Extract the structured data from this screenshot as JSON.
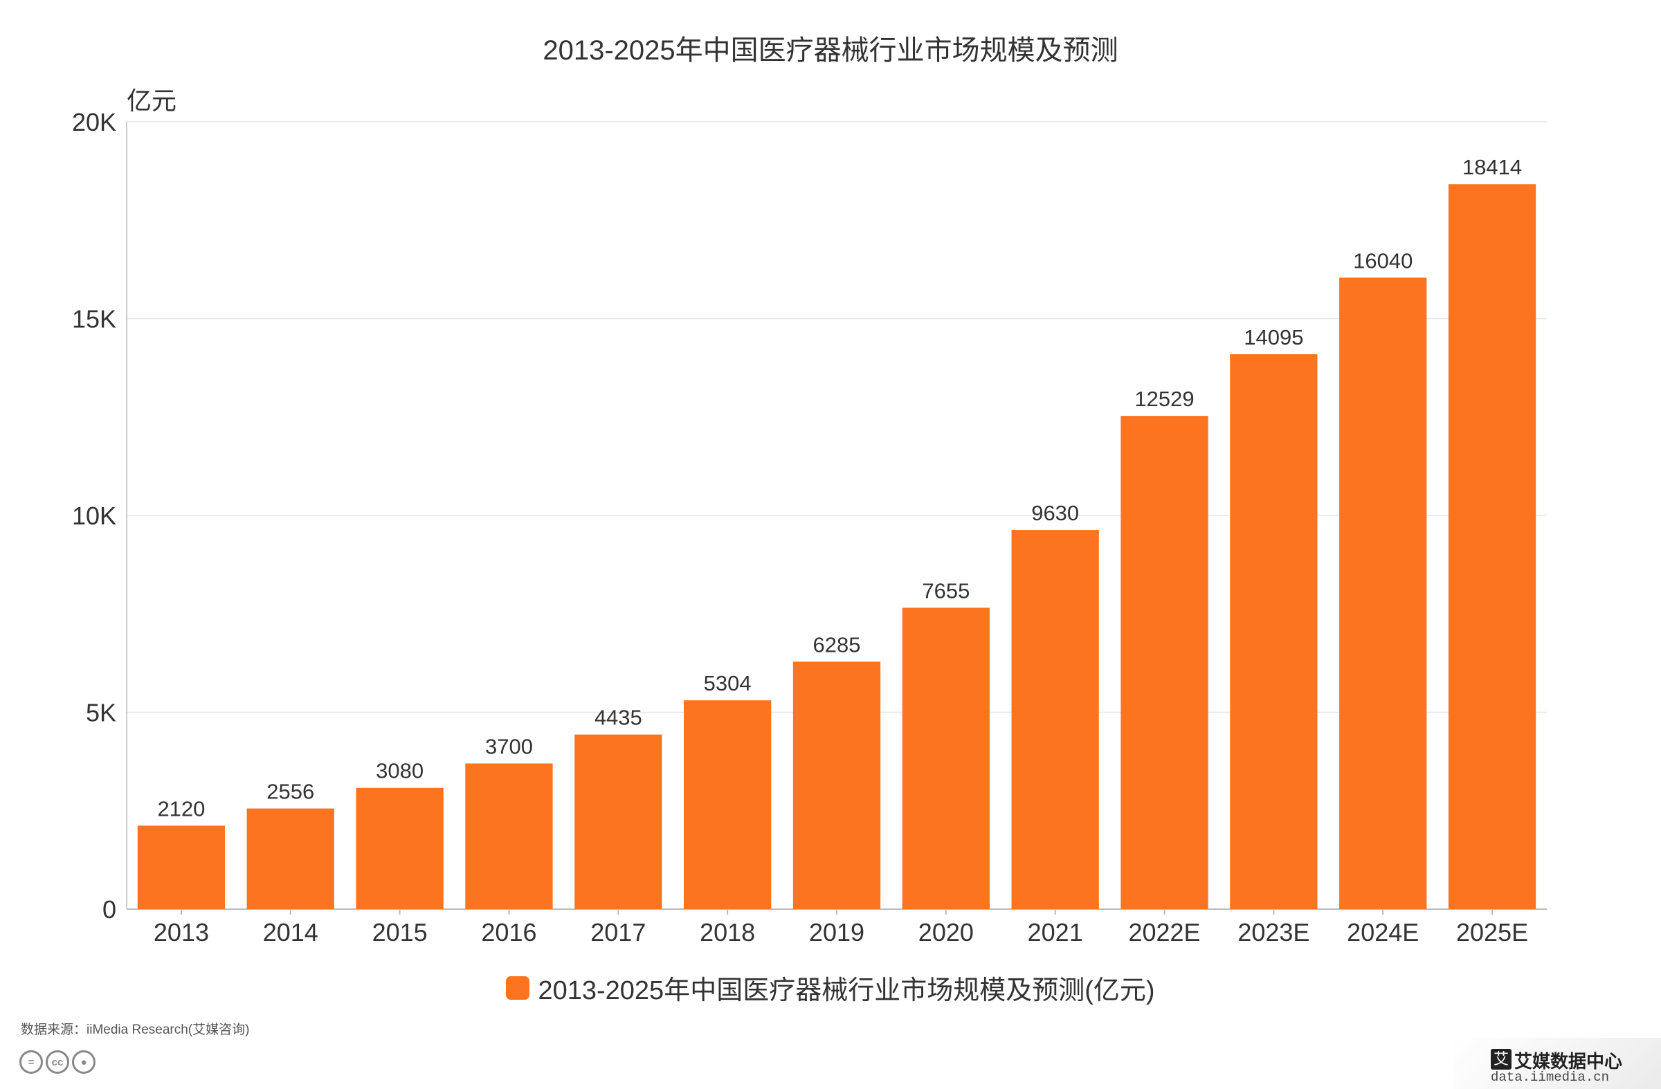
{
  "chart_data": {
    "type": "bar",
    "title": "2013-2025年中国医疗器械行业市场规模及预测",
    "ylabel": "亿元",
    "xlabel": "",
    "ylim": [
      0,
      20000
    ],
    "yticks": [
      {
        "value": 0,
        "label": "0"
      },
      {
        "value": 5000,
        "label": "5K"
      },
      {
        "value": 10000,
        "label": "10K"
      },
      {
        "value": 15000,
        "label": "15K"
      },
      {
        "value": 20000,
        "label": "20K"
      }
    ],
    "grid": true,
    "legend_position": "bottom",
    "categories": [
      "2013",
      "2014",
      "2015",
      "2016",
      "2017",
      "2018",
      "2019",
      "2020",
      "2021",
      "2022E",
      "2023E",
      "2024E",
      "2025E"
    ],
    "series": [
      {
        "name": "2013-2025年中国医疗器械行业市场规模及预测(亿元)",
        "color": "#fd7420",
        "values": [
          2120,
          2556,
          3080,
          3700,
          4435,
          5304,
          6285,
          7655,
          9630,
          12529,
          14095,
          16040,
          18414
        ]
      }
    ]
  },
  "source": "数据来源：iiMedia Research(艾媒咨询)",
  "license_icons": [
    "cc-equal-icon",
    "cc-icon",
    "cc-by-person-icon"
  ],
  "logo": {
    "mark": "艾",
    "name": "艾媒数据中心",
    "url": "data.iimedia.cn"
  }
}
